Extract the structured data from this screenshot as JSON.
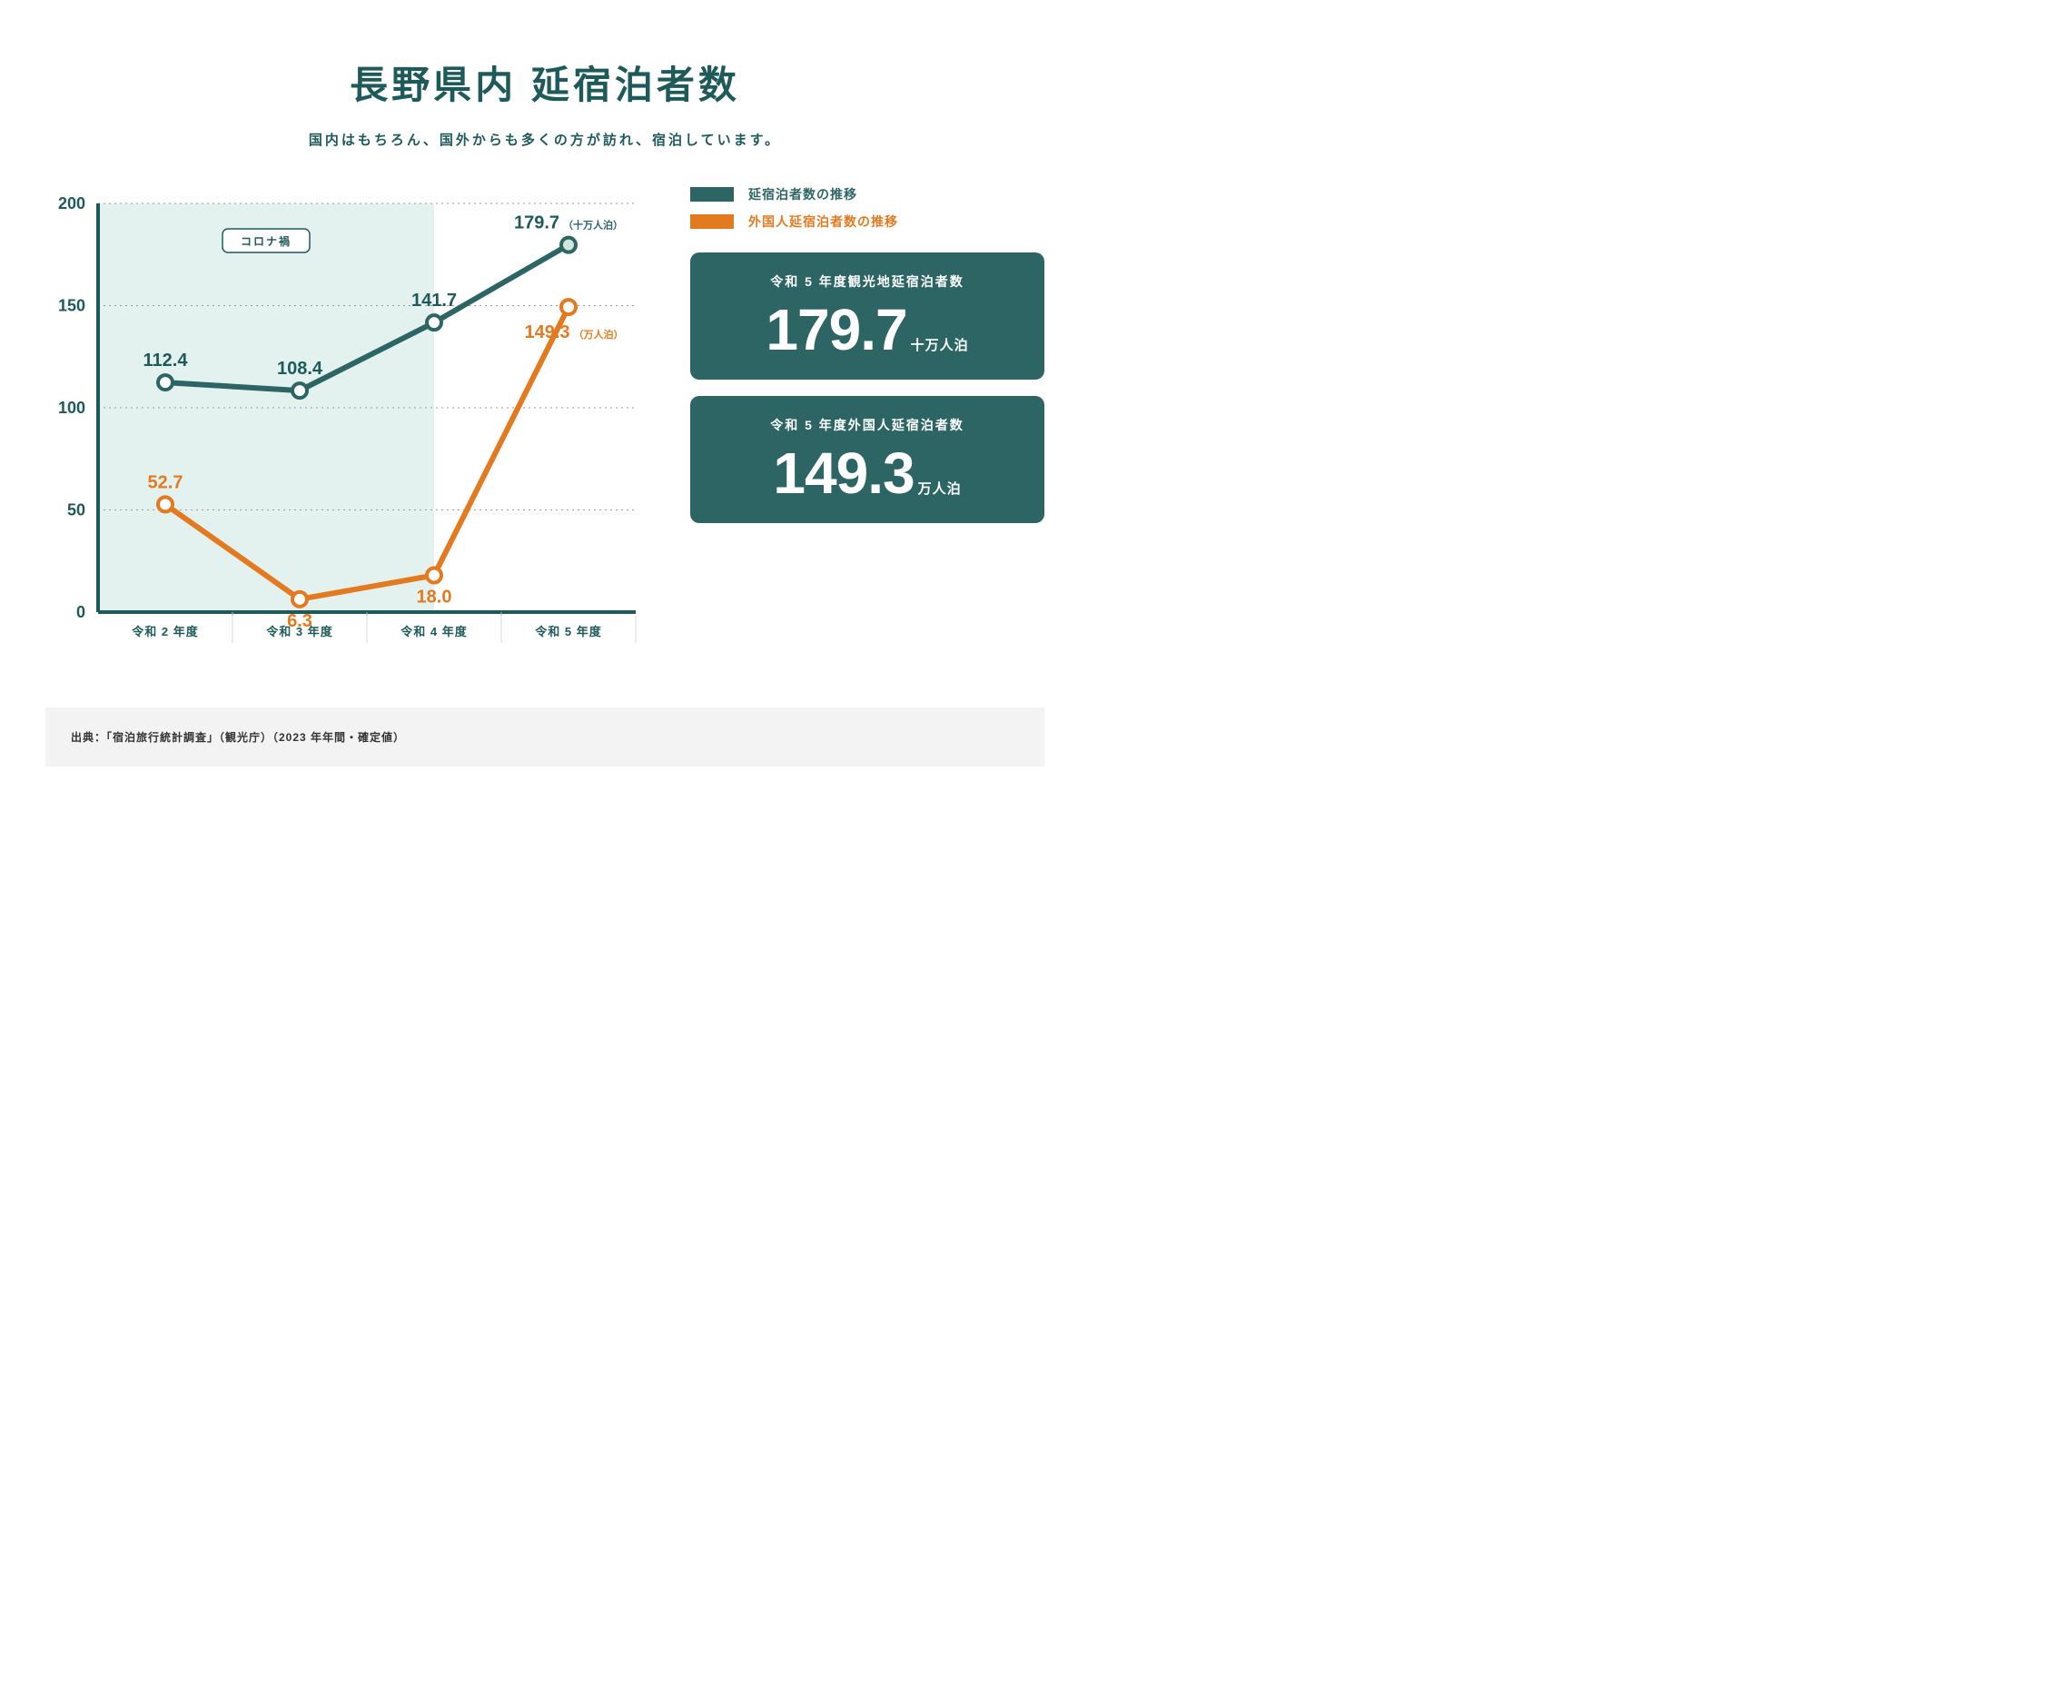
{
  "title": "長野県内 延宿泊者数",
  "subtitle": "国内はもちろん、国外からも多くの方が訪れ、宿泊しています。",
  "chart": {
    "type": "line",
    "categories": [
      "令和 2 年度",
      "令和 3 年度",
      "令和 4 年度",
      "令和 5 年度"
    ],
    "ylim": [
      0,
      200
    ],
    "yticks": [
      0,
      50,
      100,
      150,
      200
    ],
    "series": [
      {
        "key": "total",
        "name": "延宿泊者数の推移",
        "color": "#2d6565",
        "values": [
          112.4,
          108.4,
          141.7,
          179.7
        ],
        "unit_label": "（十万人泊）",
        "line_width": 6,
        "marker_radius": 8,
        "last_marker_fill": "#cde8d8"
      },
      {
        "key": "foreign",
        "name": "外国人延宿泊者数の推移",
        "color": "#e37a1f",
        "values": [
          52.7,
          6.3,
          18.0,
          149.3
        ],
        "unit_label": "（万人泊）",
        "line_width": 6,
        "marker_radius": 8
      }
    ],
    "covid_label": "コロナ禍",
    "covid_span_idx": [
      0,
      2
    ],
    "background_color": "#ffffff",
    "shade_color": "#e3f1ef",
    "grid_color": "#999999",
    "axis_color": "#1f5a5a",
    "label_fontsize": 18,
    "point_label_fontsize": 20
  },
  "legend": [
    {
      "label": "延宿泊者数の推移",
      "color": "#2d6565"
    },
    {
      "label": "外国人延宿泊者数の推移",
      "color": "#e37a1f"
    }
  ],
  "stats": [
    {
      "label": "令和 5 年度観光地延宿泊者数",
      "value": "179.7",
      "unit": "十万人泊"
    },
    {
      "label": "令和 5 年度外国人延宿泊者数",
      "value": "149.3",
      "unit": "万人泊"
    }
  ],
  "source": "出典：「宿泊旅行統計調査」（観光庁）（2023 年年間・確定値）",
  "colors": {
    "teal": "#2d6565",
    "teal_dark": "#1f5a5a",
    "orange": "#e37a1f",
    "shade": "#e3f1ef",
    "source_bg": "#f3f3f3"
  }
}
